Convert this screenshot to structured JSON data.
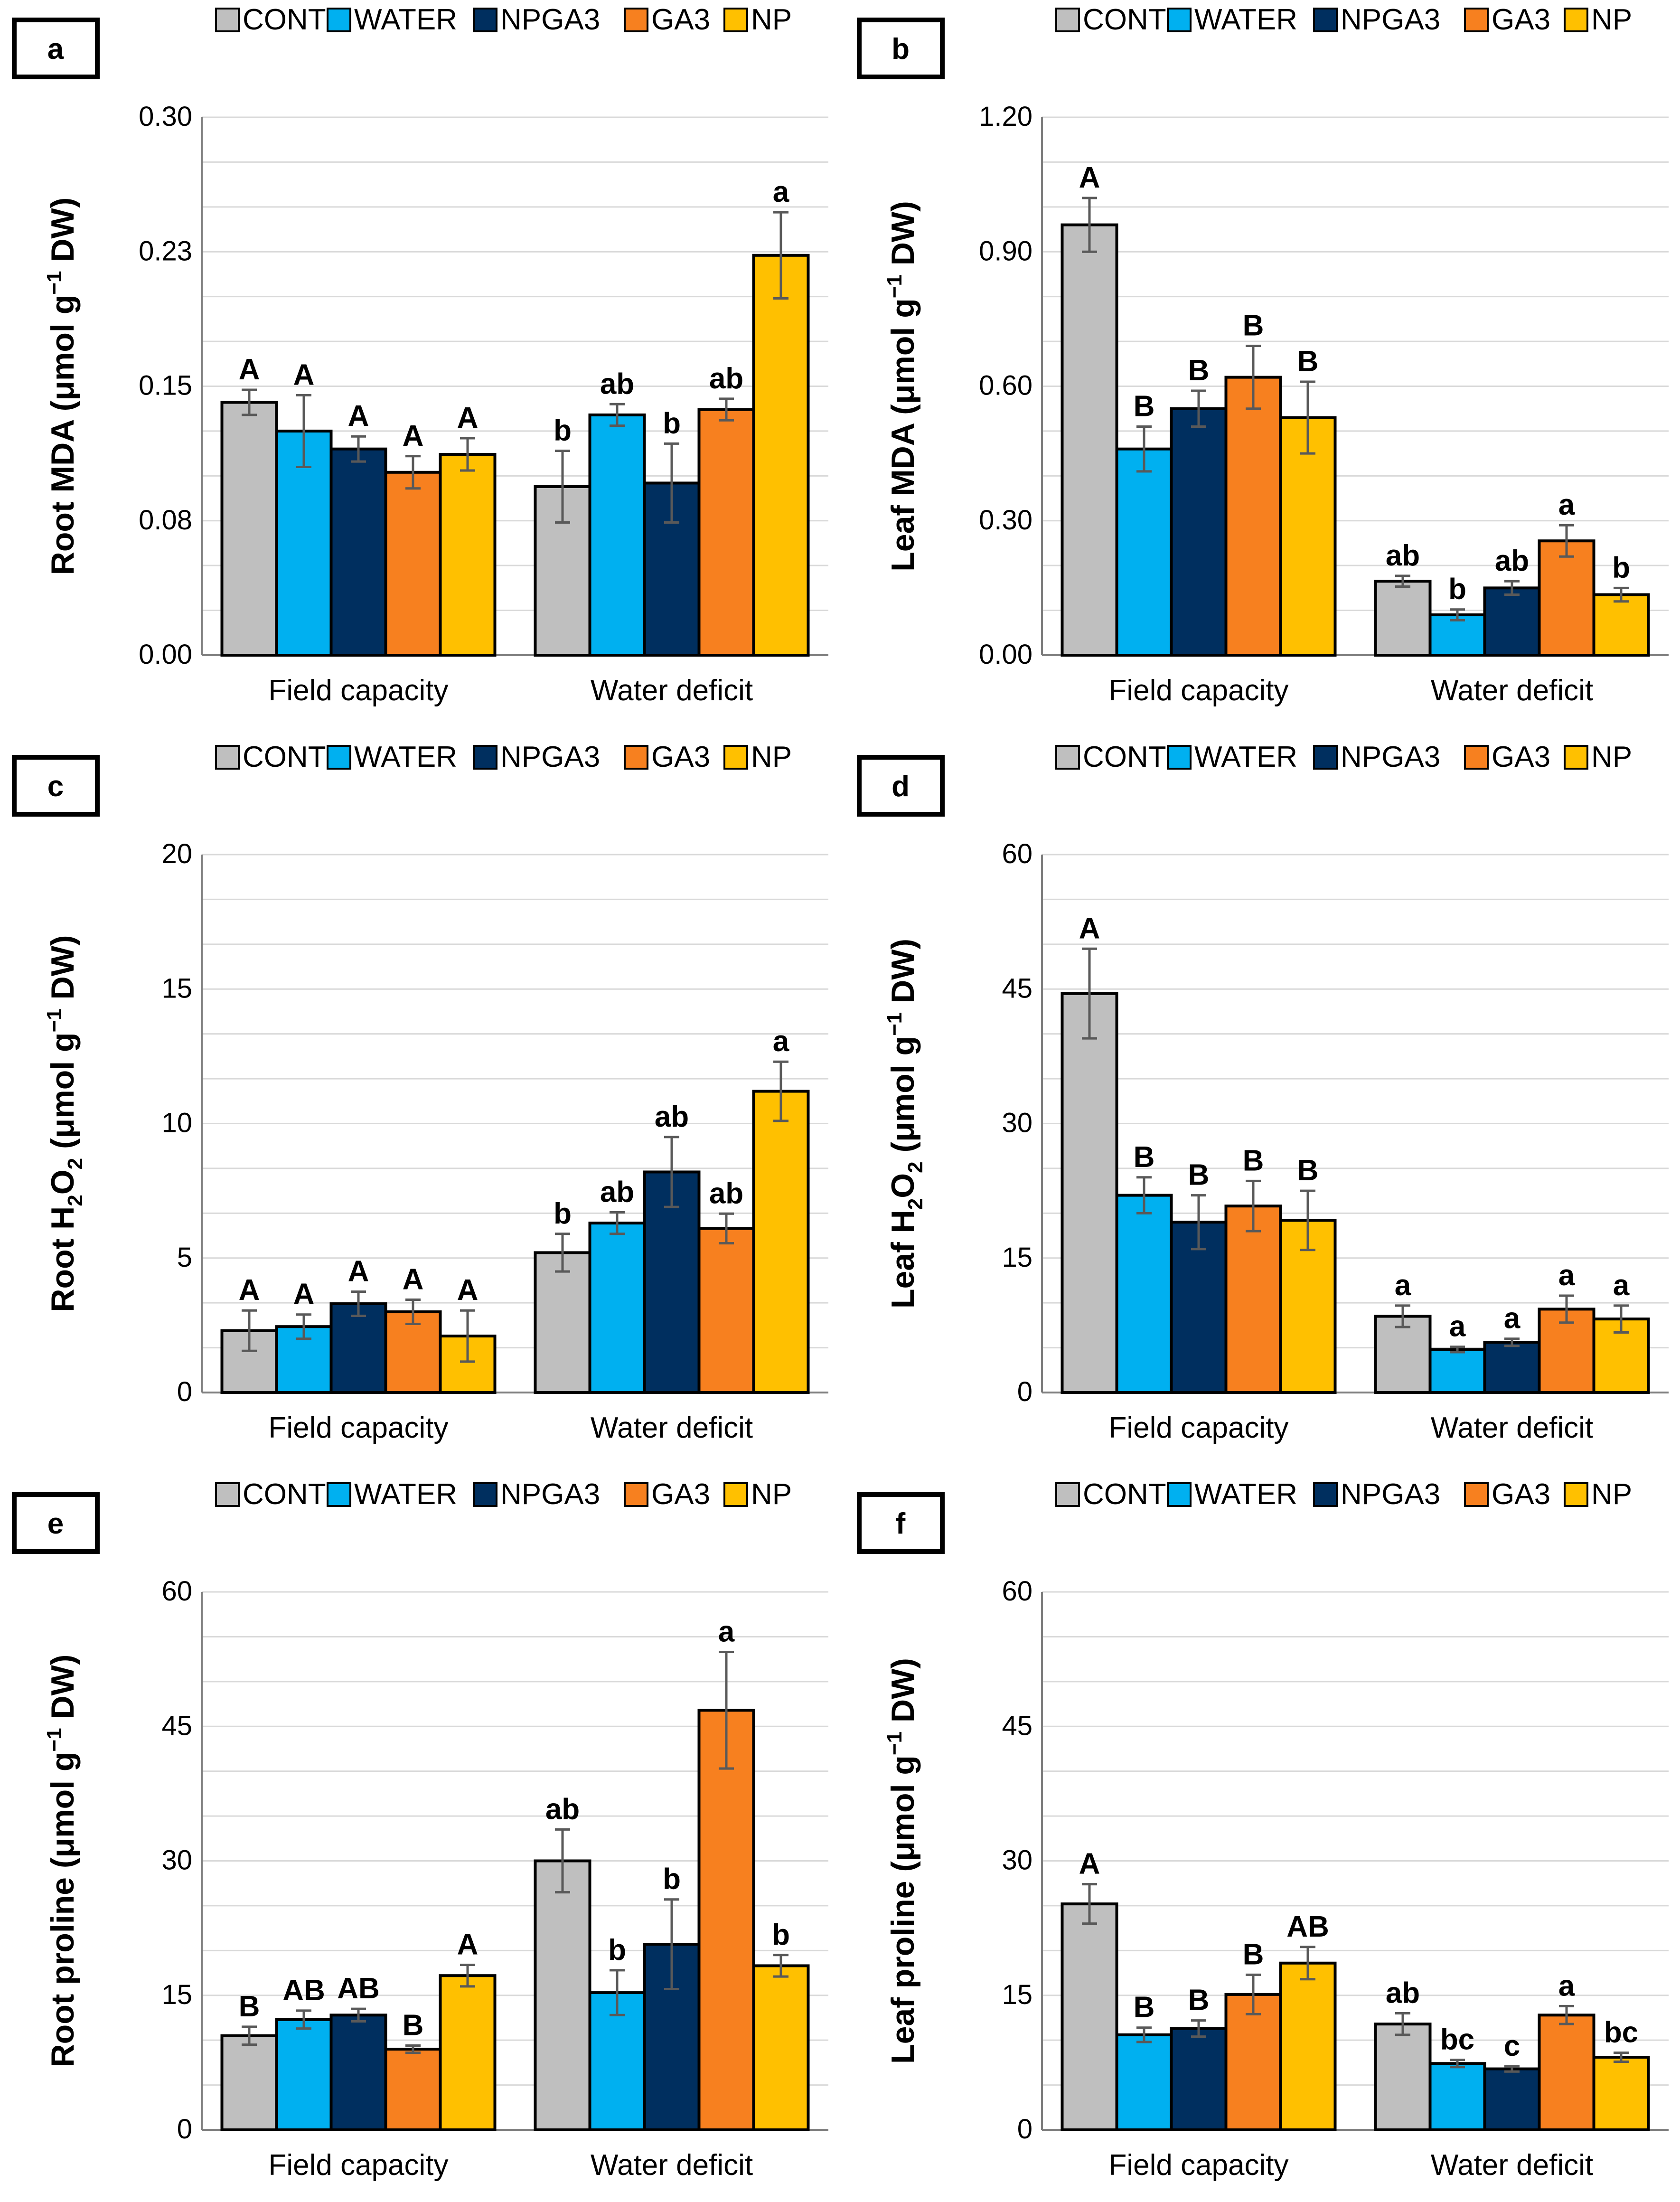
{
  "legend": [
    {
      "name": "CONT",
      "color": "#BFBFBF"
    },
    {
      "name": "WATER",
      "color": "#00B0F0"
    },
    {
      "name": "NPGA3",
      "color": "#002F5F"
    },
    {
      "name": "GA3",
      "color": "#F7801F"
    },
    {
      "name": "NP",
      "color": "#FFC000"
    }
  ],
  "chart_data": [
    {
      "type": "bar",
      "panel_label": "a",
      "ylabel_prefix": "Root MDA (μmol g",
      "ylabel_sup": "−1",
      "ylabel_suffix": " DW)",
      "categories": [
        "Field capacity",
        "Water deficit"
      ],
      "ylim": [
        0,
        0.3
      ],
      "yticks": [
        0,
        0.075,
        0.15,
        0.225,
        0.3
      ],
      "yticklabels": [
        "0.00",
        "0.08",
        "0.15",
        "0.23",
        "0.30"
      ],
      "series": [
        {
          "name": "CONT",
          "values": [
            0.141,
            0.094
          ],
          "errors": [
            0.007,
            0.02
          ],
          "letters": [
            "A",
            "b"
          ]
        },
        {
          "name": "WATER",
          "values": [
            0.125,
            0.134
          ],
          "errors": [
            0.02,
            0.006
          ],
          "letters": [
            "A",
            "ab"
          ]
        },
        {
          "name": "NPGA3",
          "values": [
            0.115,
            0.096
          ],
          "errors": [
            0.007,
            0.022
          ],
          "letters": [
            "A",
            "b"
          ]
        },
        {
          "name": "GA3",
          "values": [
            0.102,
            0.137
          ],
          "errors": [
            0.009,
            0.006
          ],
          "letters": [
            "A",
            "ab"
          ]
        },
        {
          "name": "NP",
          "values": [
            0.112,
            0.223
          ],
          "errors": [
            0.009,
            0.024
          ],
          "letters": [
            "A",
            "a"
          ]
        }
      ]
    },
    {
      "type": "bar",
      "panel_label": "b",
      "ylabel_prefix": "Leaf MDA (μmol g",
      "ylabel_sup": "−1",
      "ylabel_suffix": " DW)",
      "categories": [
        "Field capacity",
        "Water deficit"
      ],
      "ylim": [
        0,
        1.2
      ],
      "yticks": [
        0,
        0.3,
        0.6,
        0.9,
        1.2
      ],
      "yticklabels": [
        "0.00",
        "0.30",
        "0.60",
        "0.90",
        "1.20"
      ],
      "series": [
        {
          "name": "CONT",
          "values": [
            0.96,
            0.165
          ],
          "errors": [
            0.06,
            0.012
          ],
          "letters": [
            "A",
            "ab"
          ]
        },
        {
          "name": "WATER",
          "values": [
            0.46,
            0.09
          ],
          "errors": [
            0.05,
            0.012
          ],
          "letters": [
            "B",
            "b"
          ]
        },
        {
          "name": "NPGA3",
          "values": [
            0.55,
            0.15
          ],
          "errors": [
            0.04,
            0.015
          ],
          "letters": [
            "B",
            "ab"
          ]
        },
        {
          "name": "GA3",
          "values": [
            0.62,
            0.255
          ],
          "errors": [
            0.07,
            0.035
          ],
          "letters": [
            "B",
            "a"
          ]
        },
        {
          "name": "NP",
          "values": [
            0.53,
            0.135
          ],
          "errors": [
            0.08,
            0.015
          ],
          "letters": [
            "B",
            "b"
          ]
        }
      ]
    },
    {
      "type": "bar",
      "panel_label": "c",
      "ylabel_prefix": "Root H",
      "ylabel_sub": "2",
      "ylabel_mid": "O",
      "ylabel_sub2": "2",
      "ylabel_mid2": " (μmol g",
      "ylabel_sup": "−1",
      "ylabel_suffix": " DW)",
      "categories": [
        "Field capacity",
        "Water deficit"
      ],
      "ylim": [
        0,
        20
      ],
      "yticks": [
        0,
        5,
        10,
        15,
        20
      ],
      "yticklabels": [
        "0",
        "5",
        "10",
        "15",
        "20"
      ],
      "series": [
        {
          "name": "CONT",
          "values": [
            2.3,
            5.2
          ],
          "errors": [
            0.75,
            0.7
          ],
          "letters": [
            "A",
            "b"
          ]
        },
        {
          "name": "WATER",
          "values": [
            2.45,
            6.3
          ],
          "errors": [
            0.45,
            0.4
          ],
          "letters": [
            "A",
            "ab"
          ]
        },
        {
          "name": "NPGA3",
          "values": [
            3.3,
            8.2
          ],
          "errors": [
            0.45,
            1.3
          ],
          "letters": [
            "A",
            "ab"
          ]
        },
        {
          "name": "GA3",
          "values": [
            3.0,
            6.1
          ],
          "errors": [
            0.45,
            0.55
          ],
          "letters": [
            "A",
            "ab"
          ]
        },
        {
          "name": "NP",
          "values": [
            2.1,
            11.2
          ],
          "errors": [
            0.95,
            1.1
          ],
          "letters": [
            "A",
            "a"
          ]
        }
      ]
    },
    {
      "type": "bar",
      "panel_label": "d",
      "ylabel_prefix": "Leaf H",
      "ylabel_sub": "2",
      "ylabel_mid": "O",
      "ylabel_sub2": "2",
      "ylabel_mid2": " (μmol g",
      "ylabel_sup": "−1",
      "ylabel_suffix": " DW)",
      "categories": [
        "Field capacity",
        "Water deficit"
      ],
      "ylim": [
        0,
        60
      ],
      "yticks": [
        0,
        15,
        30,
        45,
        60
      ],
      "yticklabels": [
        "0",
        "15",
        "30",
        "45",
        "60"
      ],
      "series": [
        {
          "name": "CONT",
          "values": [
            44.5,
            8.5
          ],
          "errors": [
            5.0,
            1.2
          ],
          "letters": [
            "A",
            "a"
          ]
        },
        {
          "name": "WATER",
          "values": [
            22.0,
            4.8
          ],
          "errors": [
            2.0,
            0.3
          ],
          "letters": [
            "B",
            "a"
          ]
        },
        {
          "name": "NPGA3",
          "values": [
            19.0,
            5.6
          ],
          "errors": [
            3.0,
            0.4
          ],
          "letters": [
            "B",
            "a"
          ]
        },
        {
          "name": "GA3",
          "values": [
            20.8,
            9.3
          ],
          "errors": [
            2.8,
            1.5
          ],
          "letters": [
            "B",
            "a"
          ]
        },
        {
          "name": "NP",
          "values": [
            19.2,
            8.2
          ],
          "errors": [
            3.3,
            1.5
          ],
          "letters": [
            "B",
            "a"
          ]
        }
      ]
    },
    {
      "type": "bar",
      "panel_label": "e",
      "ylabel_prefix": "Root proline (μmol g",
      "ylabel_sup": "−1",
      "ylabel_suffix": " DW)",
      "categories": [
        "Field capacity",
        "Water deficit"
      ],
      "ylim": [
        0,
        60
      ],
      "yticks": [
        0,
        15,
        30,
        45,
        60
      ],
      "yticklabels": [
        "0",
        "15",
        "30",
        "45",
        "60"
      ],
      "series": [
        {
          "name": "CONT",
          "values": [
            10.5,
            30.0
          ],
          "errors": [
            1.0,
            3.5
          ],
          "letters": [
            "B",
            "ab"
          ]
        },
        {
          "name": "WATER",
          "values": [
            12.3,
            15.3
          ],
          "errors": [
            1.0,
            2.5
          ],
          "letters": [
            "AB",
            "b"
          ]
        },
        {
          "name": "NPGA3",
          "values": [
            12.8,
            20.7
          ],
          "errors": [
            0.7,
            5.0
          ],
          "letters": [
            "AB",
            "b"
          ]
        },
        {
          "name": "GA3",
          "values": [
            9.0,
            46.8
          ],
          "errors": [
            0.4,
            6.5
          ],
          "letters": [
            "B",
            "a"
          ]
        },
        {
          "name": "NP",
          "values": [
            17.2,
            18.3
          ],
          "errors": [
            1.2,
            1.2
          ],
          "letters": [
            "A",
            "b"
          ]
        }
      ]
    },
    {
      "type": "bar",
      "panel_label": "f",
      "ylabel_prefix": "Leaf proline (μmol g",
      "ylabel_sup": "−1",
      "ylabel_suffix": " DW)",
      "categories": [
        "Field capacity",
        "Water deficit"
      ],
      "ylim": [
        0,
        60
      ],
      "yticks": [
        0,
        15,
        30,
        45,
        60
      ],
      "yticklabels": [
        "0",
        "15",
        "30",
        "45",
        "60"
      ],
      "series": [
        {
          "name": "CONT",
          "values": [
            25.2,
            11.8
          ],
          "errors": [
            2.2,
            1.2
          ],
          "letters": [
            "A",
            "ab"
          ]
        },
        {
          "name": "WATER",
          "values": [
            10.6,
            7.4
          ],
          "errors": [
            0.8,
            0.4
          ],
          "letters": [
            "B",
            "bc"
          ]
        },
        {
          "name": "NPGA3",
          "values": [
            11.3,
            6.8
          ],
          "errors": [
            0.9,
            0.3
          ],
          "letters": [
            "B",
            "c"
          ]
        },
        {
          "name": "GA3",
          "values": [
            15.1,
            12.8
          ],
          "errors": [
            2.2,
            1.0
          ],
          "letters": [
            "B",
            "a"
          ]
        },
        {
          "name": "NP",
          "values": [
            18.6,
            8.1
          ],
          "errors": [
            1.8,
            0.5
          ],
          "letters": [
            "AB",
            "bc"
          ]
        }
      ]
    }
  ]
}
